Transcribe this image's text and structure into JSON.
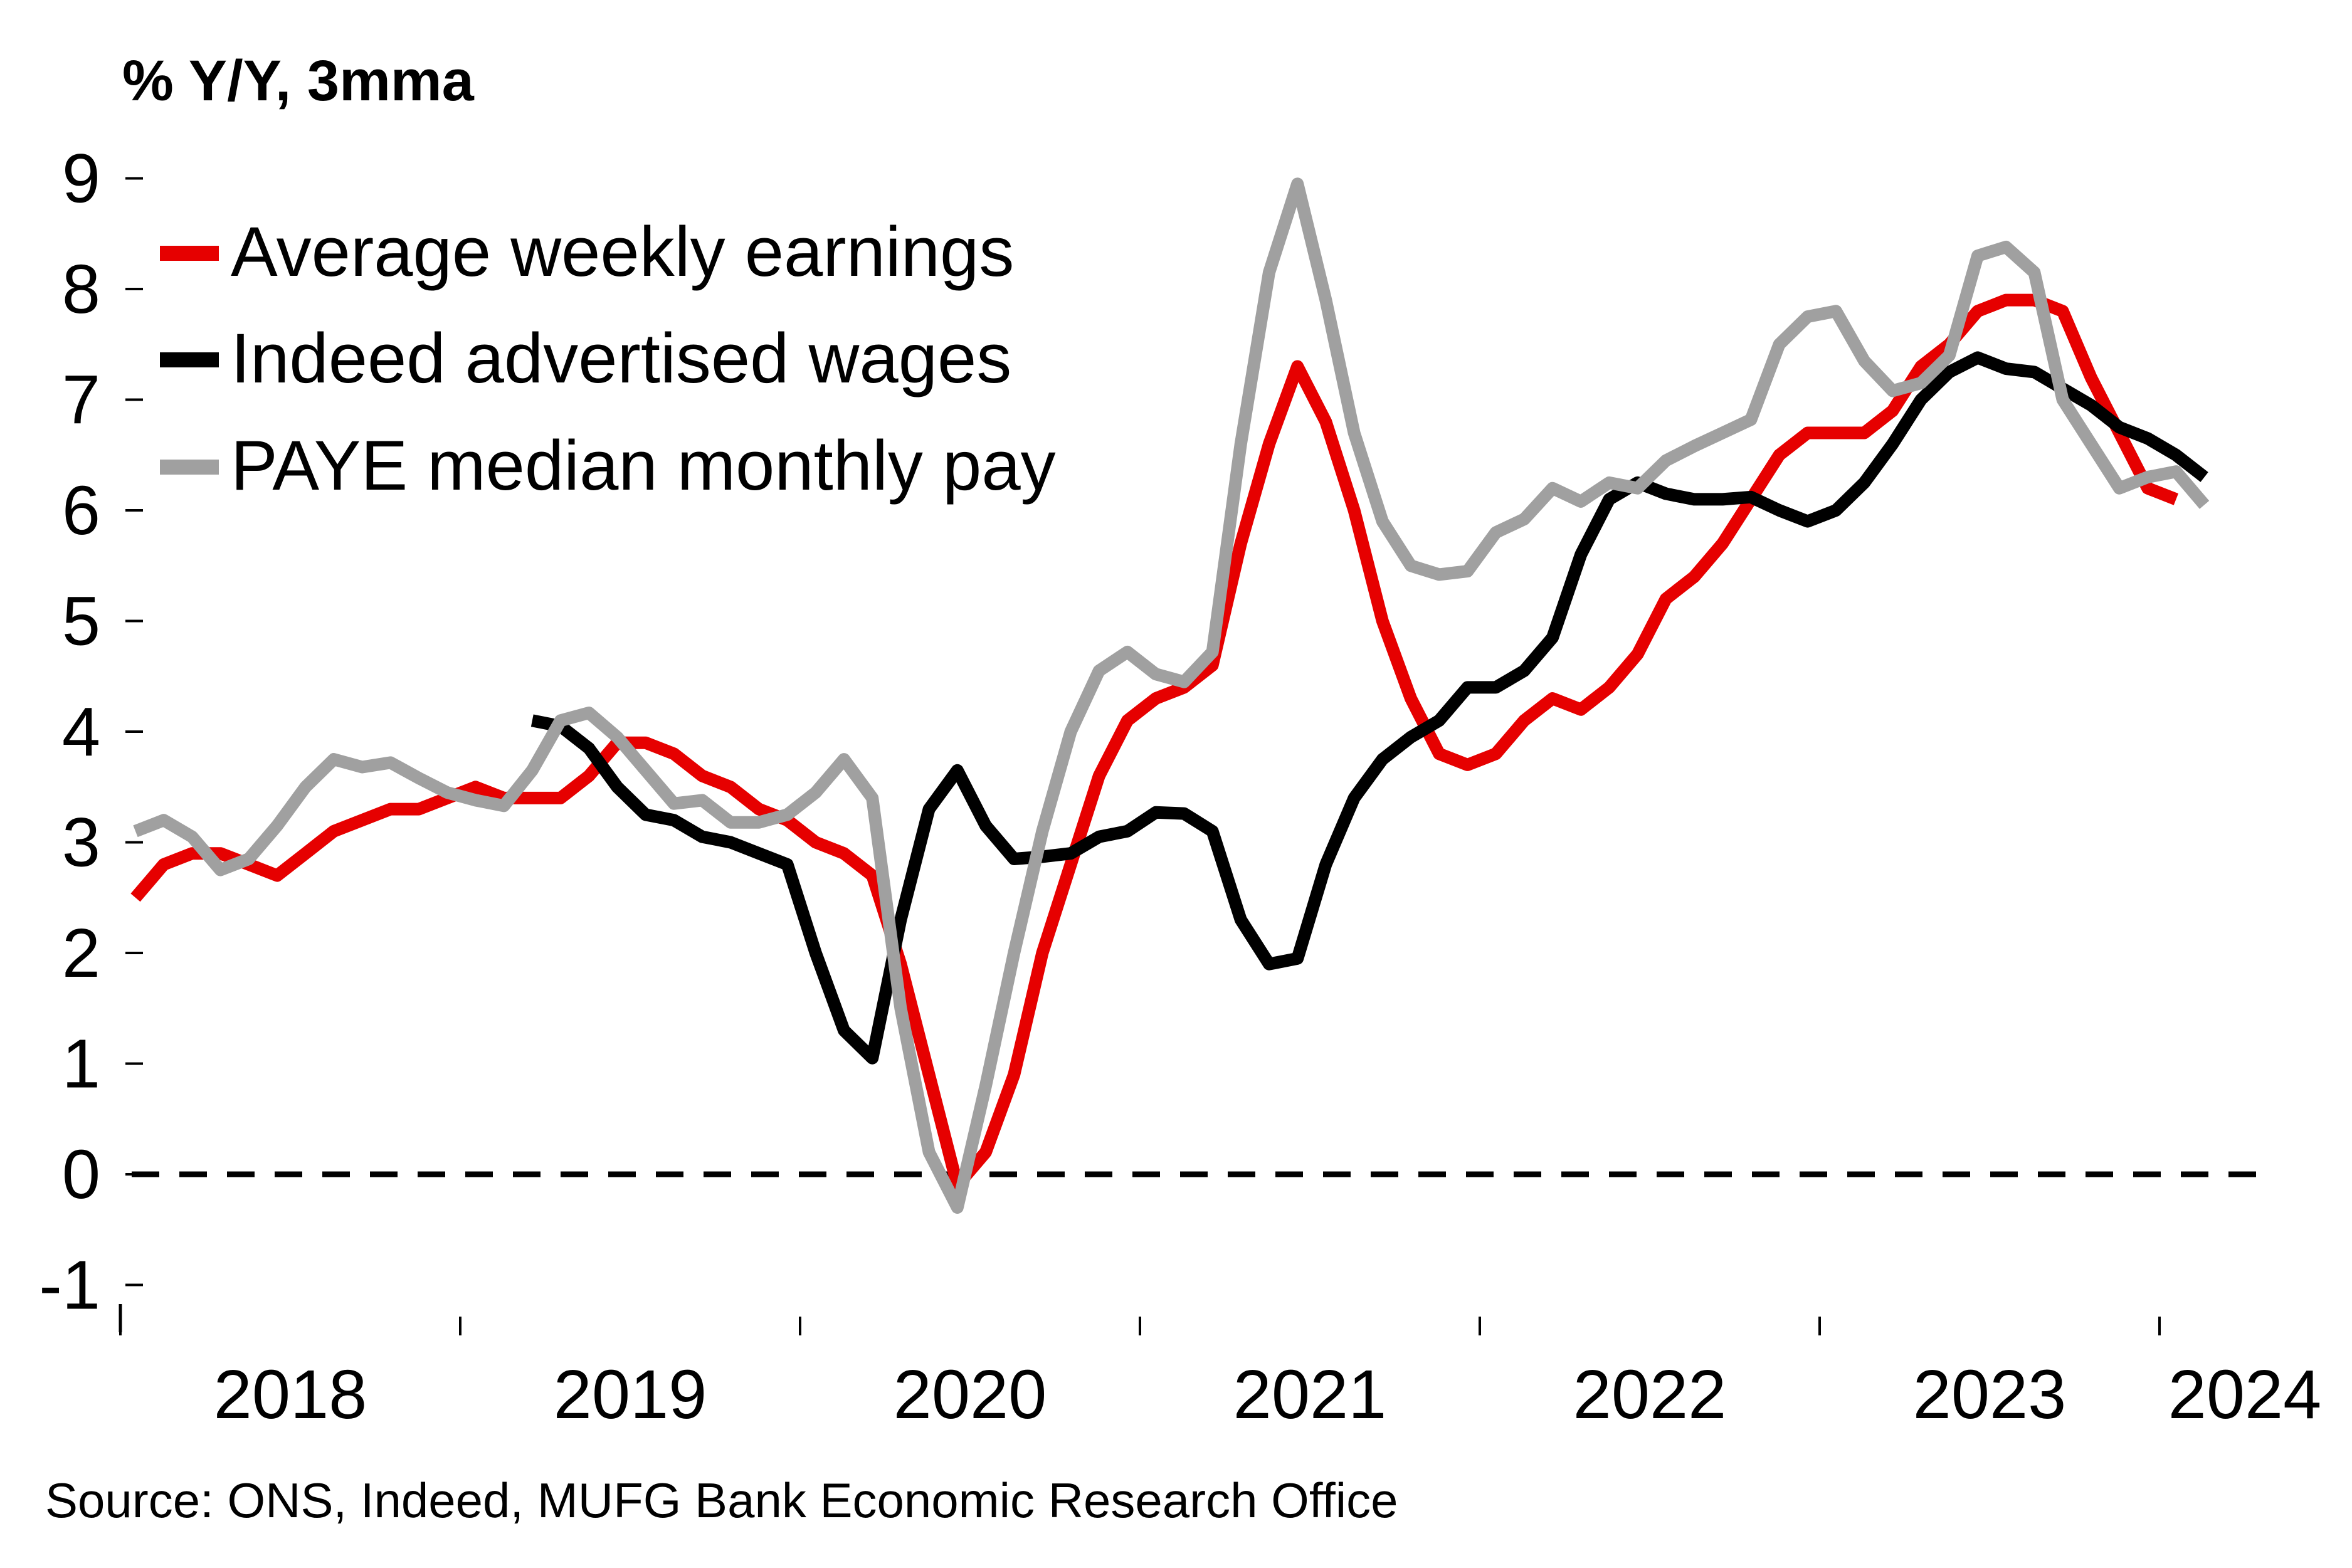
{
  "chart_data": {
    "type": "line",
    "title": "% Y/Y, 3mma",
    "xlabel": "",
    "ylabel": "% Y/Y, 3mma",
    "ylim": [
      -1,
      9
    ],
    "yticks": [
      9,
      8,
      7,
      6,
      5,
      4,
      3,
      2,
      1,
      0,
      -1
    ],
    "ytick_labels": [
      "9",
      "8",
      "7",
      "6",
      "5",
      "4",
      "3",
      "2",
      "1",
      "0",
      "-1"
    ],
    "x_start": "2018-01",
    "x_frequency": "monthly",
    "xtick_labels": [
      "2018",
      "2019",
      "2020",
      "2021",
      "2022",
      "2023",
      "2024"
    ],
    "grid": false,
    "zero_line": "dashed",
    "legend_position": "top-left",
    "series": [
      {
        "name": "Average weekly earnings",
        "color": "#e60000",
        "start_index": 0,
        "values": [
          2.5,
          2.8,
          2.9,
          2.9,
          2.8,
          2.7,
          2.9,
          3.1,
          3.2,
          3.3,
          3.3,
          3.4,
          3.5,
          3.4,
          3.4,
          3.4,
          3.6,
          3.9,
          3.9,
          3.8,
          3.6,
          3.5,
          3.3,
          3.2,
          3.0,
          2.9,
          2.7,
          1.9,
          0.9,
          -0.1,
          0.2,
          0.9,
          2.0,
          2.8,
          3.6,
          4.1,
          4.3,
          4.4,
          4.6,
          5.7,
          6.6,
          7.3,
          6.8,
          6.0,
          5.0,
          4.3,
          3.8,
          3.7,
          3.8,
          4.1,
          4.3,
          4.2,
          4.4,
          4.7,
          5.2,
          5.4,
          5.7,
          6.1,
          6.5,
          6.7,
          6.7,
          6.7,
          6.9,
          7.3,
          7.5,
          7.8,
          7.9,
          7.9,
          7.8,
          7.2,
          6.7,
          6.2,
          6.1
        ]
      },
      {
        "name": "Indeed advertised wages",
        "color": "#000000",
        "start_index": 14,
        "values": [
          4.1,
          4.05,
          3.85,
          3.5,
          3.25,
          3.2,
          3.05,
          3.0,
          2.9,
          2.8,
          2.0,
          1.3,
          1.05,
          2.3,
          3.3,
          3.65,
          3.15,
          2.85,
          2.87,
          2.9,
          3.05,
          3.1,
          3.27,
          3.26,
          3.1,
          2.3,
          1.9,
          1.95,
          2.8,
          3.4,
          3.75,
          3.95,
          4.1,
          4.4,
          4.4,
          4.55,
          4.85,
          5.6,
          6.1,
          6.25,
          6.15,
          6.1,
          6.1,
          6.12,
          6.0,
          5.9,
          6.0,
          6.25,
          6.6,
          7.0,
          7.25,
          7.38,
          7.28,
          7.25,
          7.1,
          6.95,
          6.75,
          6.65,
          6.5,
          6.3
        ]
      },
      {
        "name": "PAYE median monthly pay",
        "color": "#a0a0a0",
        "start_index": 0,
        "values": [
          3.1,
          3.2,
          3.05,
          2.75,
          2.85,
          3.15,
          3.5,
          3.75,
          3.68,
          3.72,
          3.58,
          3.45,
          3.38,
          3.33,
          3.65,
          4.1,
          4.17,
          3.95,
          3.65,
          3.35,
          3.38,
          3.18,
          3.18,
          3.25,
          3.45,
          3.75,
          3.4,
          1.5,
          0.2,
          -0.3,
          0.8,
          2.0,
          3.1,
          4.0,
          4.55,
          4.72,
          4.52,
          4.45,
          4.72,
          6.6,
          8.15,
          8.95,
          7.9,
          6.7,
          5.9,
          5.5,
          5.42,
          5.45,
          5.8,
          5.92,
          6.2,
          6.08,
          6.25,
          6.2,
          6.45,
          6.58,
          6.7,
          6.82,
          7.5,
          7.75,
          7.8,
          7.35,
          7.08,
          7.15,
          7.4,
          8.3,
          8.38,
          8.15,
          7.0,
          6.6,
          6.2,
          6.3,
          6.35,
          6.05
        ]
      }
    ],
    "source": "Source: ONS, Indeed, MUFG Bank Economic Research Office"
  }
}
